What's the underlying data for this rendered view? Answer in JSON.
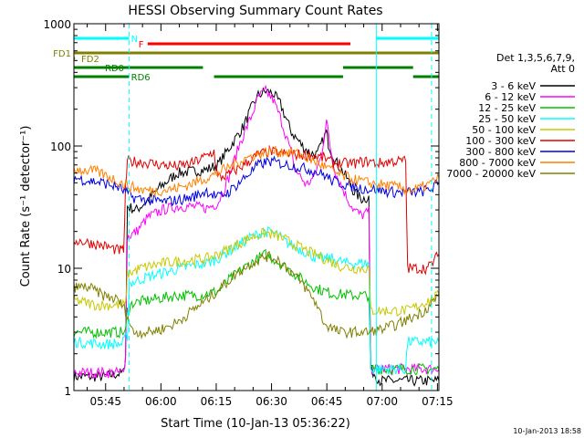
{
  "chart_data": {
    "type": "line",
    "title": "HESSI Observing Summary Count Rates",
    "xlabel": "Start Time (10-Jan-13 05:36:22)",
    "ylabel": "Count Rate (s⁻¹ detector⁻¹)",
    "yscale": "log",
    "ylim": [
      1,
      1000
    ],
    "xlim_minutes": [
      0,
      99
    ],
    "x_ticks": [
      {
        "label": "05:45",
        "t": 8.6
      },
      {
        "label": "06:00",
        "t": 23.6
      },
      {
        "label": "06:15",
        "t": 38.6
      },
      {
        "label": "06:30",
        "t": 53.6
      },
      {
        "label": "06:45",
        "t": 68.6
      },
      {
        "label": "07:00",
        "t": 83.6
      },
      {
        "label": "07:15",
        "t": 98.6
      }
    ],
    "y_ticks": [
      {
        "label": "1",
        "v": 1
      },
      {
        "label": "10",
        "v": 10
      },
      {
        "label": "100",
        "v": 100
      },
      {
        "label": "1000",
        "v": 1000
      }
    ],
    "legend_header": [
      "Det 1,3,5,6,7,9,",
      "Att 0"
    ],
    "legend_position": "right",
    "series": [
      {
        "name": "3 - 6 keV",
        "color": "#000000",
        "points": [
          [
            0,
            1.3
          ],
          [
            8,
            1.3
          ],
          [
            13.5,
            1.4
          ],
          [
            14,
            2
          ],
          [
            14.5,
            32
          ],
          [
            17,
            30
          ],
          [
            20,
            36
          ],
          [
            23,
            45
          ],
          [
            28,
            60
          ],
          [
            32,
            62
          ],
          [
            36,
            64
          ],
          [
            39,
            70
          ],
          [
            42,
            95
          ],
          [
            46,
            145
          ],
          [
            48,
            200
          ],
          [
            50,
            260
          ],
          [
            52,
            280
          ],
          [
            54,
            270
          ],
          [
            56,
            220
          ],
          [
            59,
            130
          ],
          [
            62,
            100
          ],
          [
            64,
            88
          ],
          [
            66,
            85
          ],
          [
            68,
            120
          ],
          [
            68.5,
            130
          ],
          [
            69,
            105
          ],
          [
            71,
            75
          ],
          [
            74,
            55
          ],
          [
            76,
            42
          ],
          [
            78,
            37
          ],
          [
            80,
            38
          ],
          [
            80.5,
            1.5
          ],
          [
            83,
            1.2
          ],
          [
            86,
            1.2
          ],
          [
            99,
            1.2
          ]
        ]
      },
      {
        "name": "6 - 12 keV",
        "color": "#ff00ff",
        "points": [
          [
            0,
            1.4
          ],
          [
            10,
            1.4
          ],
          [
            13.5,
            1.4
          ],
          [
            14,
            2
          ],
          [
            14.5,
            18
          ],
          [
            17,
            20
          ],
          [
            20,
            26
          ],
          [
            24,
            30
          ],
          [
            28,
            32
          ],
          [
            32,
            32
          ],
          [
            36,
            31
          ],
          [
            39,
            34
          ],
          [
            42,
            55
          ],
          [
            45,
            105
          ],
          [
            48,
            170
          ],
          [
            50,
            250
          ],
          [
            52,
            280
          ],
          [
            54,
            240
          ],
          [
            56,
            170
          ],
          [
            58,
            110
          ],
          [
            60,
            65
          ],
          [
            63,
            48
          ],
          [
            65,
            55
          ],
          [
            67,
            80
          ],
          [
            68.5,
            160
          ],
          [
            69.5,
            100
          ],
          [
            71,
            60
          ],
          [
            74,
            38
          ],
          [
            76,
            30
          ],
          [
            78,
            27
          ],
          [
            80,
            29
          ],
          [
            80.5,
            1.5
          ],
          [
            99,
            1.5
          ]
        ]
      },
      {
        "name": "12 - 25 keV",
        "color": "#00c000",
        "points": [
          [
            0,
            3
          ],
          [
            8,
            3
          ],
          [
            14,
            3
          ],
          [
            14.5,
            4.5
          ],
          [
            16,
            5.2
          ],
          [
            22,
            5.6
          ],
          [
            28,
            6
          ],
          [
            34,
            6
          ],
          [
            39,
            6.5
          ],
          [
            42,
            8
          ],
          [
            46,
            10
          ],
          [
            50,
            12
          ],
          [
            52,
            13
          ],
          [
            54,
            12
          ],
          [
            58,
            10
          ],
          [
            62,
            8
          ],
          [
            66,
            6.8
          ],
          [
            70,
            6.2
          ],
          [
            76,
            6
          ],
          [
            80,
            6
          ],
          [
            80.5,
            1.5
          ],
          [
            85,
            1.5
          ],
          [
            99,
            1.5
          ]
        ]
      },
      {
        "name": "25 - 50 keV",
        "color": "#00ffff",
        "points": [
          [
            0,
            2.5
          ],
          [
            8,
            2.4
          ],
          [
            13,
            2.4
          ],
          [
            14.5,
            2.8
          ],
          [
            15,
            7.5
          ],
          [
            20,
            8.5
          ],
          [
            26,
            9.5
          ],
          [
            32,
            10.5
          ],
          [
            36,
            11
          ],
          [
            39,
            12
          ],
          [
            44,
            15
          ],
          [
            48,
            18
          ],
          [
            52,
            20
          ],
          [
            55,
            19
          ],
          [
            58,
            16
          ],
          [
            62,
            14
          ],
          [
            66,
            12
          ],
          [
            70,
            12
          ],
          [
            74,
            11
          ],
          [
            78,
            11
          ],
          [
            80,
            11
          ],
          [
            80.5,
            1.5
          ],
          [
            86,
            1.5
          ],
          [
            90,
            1.5
          ],
          [
            90.5,
            2.5
          ],
          [
            99,
            2.5
          ]
        ]
      },
      {
        "name": "50 - 100 keV",
        "color": "#c8c800",
        "points": [
          [
            0,
            5.5
          ],
          [
            6,
            5
          ],
          [
            10,
            5
          ],
          [
            14,
            5
          ],
          [
            14.5,
            9
          ],
          [
            18,
            10
          ],
          [
            24,
            11
          ],
          [
            30,
            11.5
          ],
          [
            36,
            12
          ],
          [
            39,
            13
          ],
          [
            44,
            15.5
          ],
          [
            48,
            18
          ],
          [
            52,
            19.5
          ],
          [
            56,
            18
          ],
          [
            60,
            15.5
          ],
          [
            64,
            13.5
          ],
          [
            68,
            12
          ],
          [
            72,
            10.5
          ],
          [
            76,
            10
          ],
          [
            80,
            10
          ],
          [
            80.5,
            4.5
          ],
          [
            88,
            4.5
          ],
          [
            90,
            4.5
          ],
          [
            90.5,
            4.5
          ],
          [
            99,
            6
          ]
        ]
      },
      {
        "name": "100 - 300 keV",
        "color": "#e00000",
        "points": [
          [
            0,
            17
          ],
          [
            5,
            16
          ],
          [
            9,
            15
          ],
          [
            12,
            14
          ],
          [
            13.5,
            14
          ],
          [
            14,
            45
          ],
          [
            14.5,
            75
          ],
          [
            18,
            74
          ],
          [
            24,
            70
          ],
          [
            28,
            68
          ],
          [
            32,
            72
          ],
          [
            35,
            80
          ],
          [
            38,
            90
          ],
          [
            39,
            55
          ],
          [
            42,
            58
          ],
          [
            46,
            70
          ],
          [
            50,
            85
          ],
          [
            53,
            90
          ],
          [
            56,
            87
          ],
          [
            60,
            85
          ],
          [
            64,
            84
          ],
          [
            66,
            82
          ],
          [
            68,
            80
          ],
          [
            70,
            73
          ],
          [
            72,
            72
          ],
          [
            76,
            72
          ],
          [
            78,
            74
          ],
          [
            80,
            75
          ],
          [
            81,
            74
          ],
          [
            82,
            72
          ],
          [
            84,
            73
          ],
          [
            86,
            75
          ],
          [
            88,
            75
          ],
          [
            90,
            76
          ],
          [
            90.5,
            10
          ],
          [
            96,
            10
          ],
          [
            99,
            13
          ]
        ]
      },
      {
        "name": "300 - 800 keV",
        "color": "#0000e0",
        "points": [
          [
            0,
            55
          ],
          [
            4,
            52
          ],
          [
            8,
            50
          ],
          [
            12,
            46
          ],
          [
            14,
            42
          ],
          [
            16,
            38
          ],
          [
            20,
            36
          ],
          [
            24,
            35
          ],
          [
            28,
            36
          ],
          [
            32,
            38
          ],
          [
            36,
            43
          ],
          [
            39,
            38
          ],
          [
            42,
            42
          ],
          [
            46,
            54
          ],
          [
            50,
            70
          ],
          [
            53,
            75
          ],
          [
            56,
            72
          ],
          [
            60,
            68
          ],
          [
            64,
            64
          ],
          [
            68,
            58
          ],
          [
            70,
            52
          ],
          [
            74,
            48
          ],
          [
            78,
            45
          ],
          [
            82,
            44
          ],
          [
            86,
            42
          ],
          [
            90,
            42
          ],
          [
            94,
            42
          ],
          [
            97,
            45
          ],
          [
            99,
            50
          ]
        ]
      },
      {
        "name": "800 - 7000 keV",
        "color": "#ff8000",
        "points": [
          [
            0,
            65
          ],
          [
            3,
            63
          ],
          [
            6,
            62
          ],
          [
            10,
            55
          ],
          [
            14,
            48
          ],
          [
            18,
            44
          ],
          [
            22,
            43
          ],
          [
            26,
            44
          ],
          [
            30,
            47
          ],
          [
            34,
            52
          ],
          [
            38,
            58
          ],
          [
            42,
            67
          ],
          [
            46,
            78
          ],
          [
            50,
            86
          ],
          [
            53,
            90
          ],
          [
            56,
            90
          ],
          [
            60,
            88
          ],
          [
            64,
            78
          ],
          [
            68,
            68
          ],
          [
            72,
            58
          ],
          [
            76,
            53
          ],
          [
            80,
            50
          ],
          [
            84,
            48
          ],
          [
            88,
            46
          ],
          [
            92,
            43
          ],
          [
            96,
            48
          ],
          [
            99,
            55
          ]
        ]
      },
      {
        "name": "7000 - 20000 keV",
        "color": "#808000",
        "points": [
          [
            0,
            7
          ],
          [
            4,
            7
          ],
          [
            8,
            6
          ],
          [
            12,
            5.5
          ],
          [
            14,
            4.5
          ],
          [
            16,
            3
          ],
          [
            20,
            3
          ],
          [
            24,
            3.2
          ],
          [
            28,
            3.6
          ],
          [
            32,
            4.5
          ],
          [
            36,
            5.5
          ],
          [
            40,
            7
          ],
          [
            44,
            9
          ],
          [
            48,
            11
          ],
          [
            52,
            12.5
          ],
          [
            55,
            12
          ],
          [
            58,
            10
          ],
          [
            62,
            7.5
          ],
          [
            66,
            5
          ],
          [
            68,
            3.5
          ],
          [
            72,
            3
          ],
          [
            76,
            3
          ],
          [
            80,
            3
          ],
          [
            84,
            3.2
          ],
          [
            88,
            3.5
          ],
          [
            92,
            4
          ],
          [
            95,
            4.5
          ],
          [
            99,
            6
          ]
        ]
      }
    ],
    "annotations": {
      "flags": [
        {
          "label": "N",
          "color": "#00ffff",
          "level": 1,
          "segments": [
            [
              0,
              15
            ],
            [
              82,
              99
            ]
          ]
        },
        {
          "label": "F",
          "color": "#ff0000",
          "level": 2,
          "segments": [
            [
              20,
              75
            ]
          ]
        },
        {
          "label": "FD1",
          "color": "#808000",
          "level": 3,
          "segments": [
            [
              0,
              99
            ]
          ]
        },
        {
          "label": "FD2",
          "color": "#808000",
          "level": 4,
          "segments": [
            [
              0,
              0.3
            ]
          ]
        },
        {
          "label": "RD0",
          "color": "#008000",
          "level": 5,
          "segments": [
            [
              0,
              35
            ],
            [
              73,
              92
            ]
          ]
        },
        {
          "label": "RD6",
          "color": "#008000",
          "level": 6,
          "segments": [
            [
              0,
              15
            ],
            [
              38,
              73
            ],
            [
              92,
              99
            ]
          ]
        }
      ],
      "vlines": [
        {
          "t": 15,
          "style": "dashed",
          "color": "#00ffff"
        },
        {
          "t": 82,
          "style": "solid",
          "color": "#00ffff"
        },
        {
          "t": 97,
          "style": "dashed",
          "color": "#00ffff"
        }
      ]
    }
  },
  "footer": {
    "date_stamp": "10-Jan-2013 18:58"
  }
}
